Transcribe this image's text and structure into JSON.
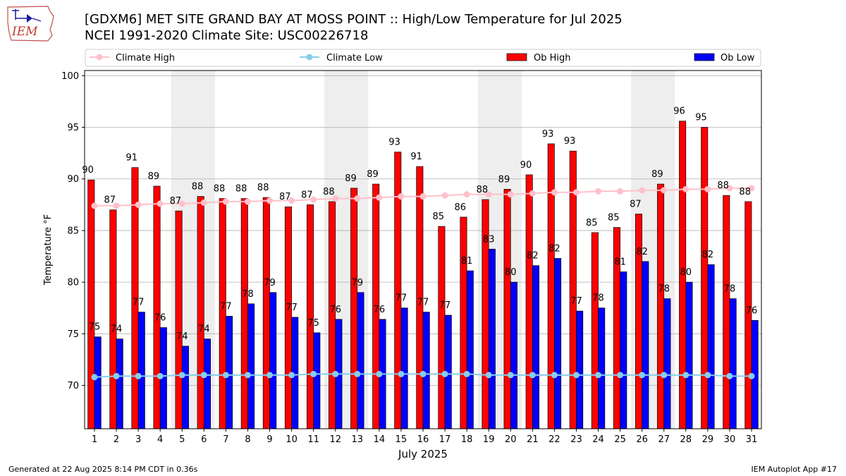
{
  "header": {
    "logo_text": "IEM",
    "title_line1": "[GDXM6] MET SITE GRAND BAY AT MOSS POINT :: High/Low Temperature for Jul 2025",
    "title_line2": "NCEI 1991-2020 Climate Site: USC00226718"
  },
  "footer": {
    "generated": "Generated at 22 Aug 2025 8:14 PM CDT in 0.36s",
    "app": "IEM Autoplot App #17"
  },
  "colors": {
    "ob_high": "#ff0000",
    "ob_low": "#0000ff",
    "climate_high": "#ffc0cb",
    "climate_low": "#87ceeb",
    "weekend_shade": "#eeeeee",
    "grid": "#b0b0b0"
  },
  "chart_data": {
    "type": "bar",
    "title": "[GDXM6] MET SITE GRAND BAY AT MOSS POINT :: High/Low Temperature for Jul 2025",
    "subtitle": "NCEI 1991-2020 Climate Site: USC00226718",
    "xlabel": "July 2025",
    "ylabel": "Temperature °F",
    "ylim": [
      65.8,
      100.5
    ],
    "yticks": [
      70,
      75,
      80,
      85,
      90,
      95,
      100
    ],
    "grid": true,
    "legend_position": "top",
    "categories": [
      "1",
      "2",
      "3",
      "4",
      "5",
      "6",
      "7",
      "8",
      "9",
      "10",
      "11",
      "12",
      "13",
      "14",
      "15",
      "16",
      "17",
      "18",
      "19",
      "20",
      "21",
      "22",
      "23",
      "24",
      "25",
      "26",
      "27",
      "28",
      "29",
      "30",
      "31"
    ],
    "shaded_days": [
      5,
      6,
      12,
      13,
      19,
      20,
      26,
      27
    ],
    "series": [
      {
        "name": "Ob High",
        "kind": "bar",
        "color": "#ff0000",
        "values": [
          90,
          87,
          91,
          89,
          87,
          88,
          88,
          88,
          88,
          87,
          87,
          88,
          89,
          89,
          93,
          91,
          85,
          86,
          88,
          89,
          90,
          93,
          93,
          85,
          85,
          87,
          89,
          96,
          95,
          88,
          88
        ],
        "plotted": [
          89.9,
          87.0,
          91.1,
          89.3,
          86.9,
          88.3,
          88.1,
          88.1,
          88.2,
          87.3,
          87.5,
          87.8,
          89.1,
          89.5,
          92.6,
          91.2,
          85.4,
          86.3,
          88.0,
          89.0,
          90.4,
          93.4,
          92.7,
          84.8,
          85.3,
          86.6,
          89.5,
          95.6,
          95.0,
          88.4,
          87.8
        ]
      },
      {
        "name": "Ob Low",
        "kind": "bar",
        "color": "#0000ff",
        "values": [
          75,
          74,
          77,
          76,
          74,
          74,
          77,
          78,
          79,
          77,
          75,
          76,
          79,
          76,
          77,
          77,
          77,
          81,
          83,
          80,
          82,
          82,
          77,
          78,
          81,
          82,
          78,
          80,
          82,
          78,
          76
        ],
        "plotted": [
          74.7,
          74.5,
          77.1,
          75.6,
          73.8,
          74.5,
          76.7,
          77.9,
          79.0,
          76.6,
          75.1,
          76.4,
          79.0,
          76.4,
          77.5,
          77.1,
          76.8,
          81.1,
          83.2,
          80.0,
          81.6,
          82.3,
          77.2,
          77.5,
          81.0,
          82.0,
          78.4,
          80.0,
          81.7,
          78.4,
          76.3
        ]
      },
      {
        "name": "Climate High",
        "kind": "line",
        "color": "#ffc0cb",
        "values": [
          87.4,
          87.4,
          87.5,
          87.6,
          87.6,
          87.7,
          87.8,
          87.8,
          87.9,
          87.9,
          88.0,
          88.1,
          88.1,
          88.2,
          88.3,
          88.3,
          88.4,
          88.5,
          88.5,
          88.5,
          88.6,
          88.7,
          88.7,
          88.8,
          88.8,
          88.9,
          88.9,
          89.0,
          89.0,
          89.1,
          89.1
        ]
      },
      {
        "name": "Climate Low",
        "kind": "line",
        "color": "#87ceeb",
        "values": [
          70.8,
          70.9,
          70.9,
          70.9,
          71.0,
          71.0,
          71.0,
          71.0,
          71.0,
          71.0,
          71.1,
          71.1,
          71.1,
          71.1,
          71.1,
          71.1,
          71.1,
          71.1,
          71.0,
          71.0,
          71.0,
          71.0,
          71.0,
          71.0,
          71.0,
          71.0,
          71.0,
          71.0,
          71.0,
          70.9,
          70.9
        ]
      }
    ]
  }
}
